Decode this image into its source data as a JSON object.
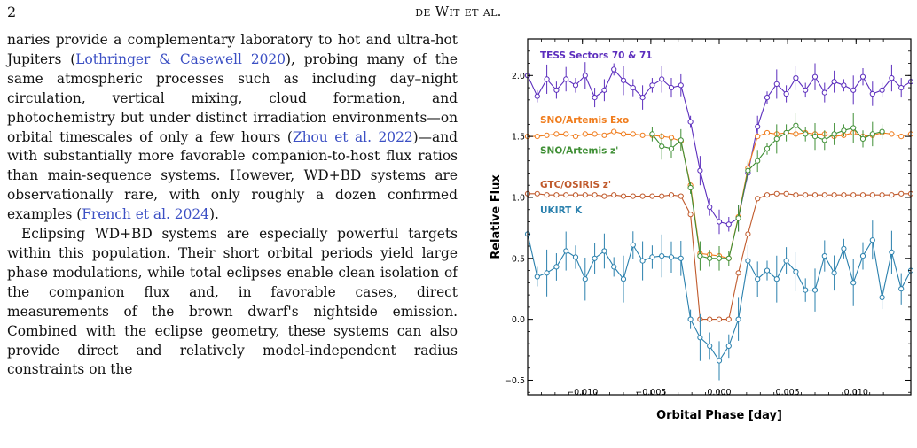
{
  "header": {
    "page_number": "2",
    "running_head": "de Wit et al."
  },
  "body": {
    "p1": [
      {
        "t": "naries provide a complementary laboratory to hot and ultra-hot Jupiters ("
      },
      {
        "t": "Lothringer & Casewell 2020",
        "cite": true
      },
      {
        "t": "), probing many of the same atmospheric processes such as including day–night circulation, vertical mixing, cloud formation, and photochemistry but under distinct irradiation environments—on orbital timescales of only a few hours ("
      },
      {
        "t": "Zhou et al. 2022",
        "cite": true
      },
      {
        "t": ")—and with substantially more favorable companion-to-host flux ratios than main-sequence systems. However, WD+BD systems are observationally rare, with only roughly a dozen confirmed examples ("
      },
      {
        "t": "French et al. 2024",
        "cite": true
      },
      {
        "t": ")."
      }
    ],
    "p2": [
      {
        "t": "Eclipsing WD+BD systems are especially powerful targets within this population. Their short orbital periods yield large phase modulations, while total eclipses enable clean isolation of the companion flux and, in favorable cases, direct measurements of the brown dwarf's nightside emission. Combined with the eclipse geometry, these systems can also provide direct and relatively model-independent radius constraints on the"
      }
    ]
  },
  "chart_data": {
    "type": "line",
    "xlabel": "Orbital Phase [day]",
    "ylabel": "Relative Flux",
    "xlim": [
      -0.014,
      0.014
    ],
    "ylim": [
      -0.62,
      2.3
    ],
    "xticks": [
      -0.01,
      -0.005,
      0.0,
      0.005,
      0.01
    ],
    "xtick_labels": [
      "−0.010",
      "−0.005",
      "0.000",
      "0.005",
      "0.010"
    ],
    "yticks": [
      -0.5,
      0.0,
      0.5,
      1.0,
      1.5,
      2.0
    ],
    "ytick_labels": [
      "−0.5",
      "0.0",
      "0.5",
      "1.0",
      "1.5",
      "2.0"
    ],
    "grid": false,
    "x": [
      -0.014,
      -0.0133,
      -0.0126,
      -0.0119,
      -0.0112,
      -0.0105,
      -0.0098,
      -0.0091,
      -0.0084,
      -0.0077,
      -0.007,
      -0.0063,
      -0.0056,
      -0.0049,
      -0.0042,
      -0.0035,
      -0.0028,
      -0.0021,
      -0.0014,
      -0.0007,
      0.0,
      0.0007,
      0.0014,
      0.0021,
      0.0028,
      0.0035,
      0.0042,
      0.0049,
      0.0056,
      0.0063,
      0.007,
      0.0077,
      0.0084,
      0.0091,
      0.0098,
      0.0105,
      0.0112,
      0.0119,
      0.0126,
      0.0133,
      0.014
    ],
    "series": [
      {
        "name": "TESS Sectors 70 & 71",
        "color": "#5b2dbd",
        "label_y": 2.14,
        "errors": true,
        "values": [
          2.0,
          1.83,
          1.97,
          1.88,
          1.97,
          1.92,
          2.0,
          1.82,
          1.88,
          2.05,
          1.96,
          1.9,
          1.82,
          1.92,
          1.97,
          1.9,
          1.92,
          1.62,
          1.22,
          0.92,
          0.8,
          0.78,
          0.83,
          1.2,
          1.58,
          1.82,
          1.93,
          1.85,
          1.98,
          1.88,
          1.99,
          1.86,
          1.95,
          1.92,
          1.88,
          1.99,
          1.85,
          1.88,
          1.98,
          1.9,
          1.95
        ]
      },
      {
        "name": "SNO/Artemis Exo",
        "color": "#f07d1e",
        "label_y": 1.61,
        "errors": false,
        "values": [
          1.5,
          1.5,
          1.51,
          1.52,
          1.52,
          1.5,
          1.52,
          1.52,
          1.51,
          1.54,
          1.52,
          1.52,
          1.51,
          1.51,
          1.5,
          1.49,
          1.46,
          1.1,
          0.54,
          0.53,
          0.52,
          0.5,
          0.84,
          1.24,
          1.5,
          1.53,
          1.52,
          1.53,
          1.52,
          1.53,
          1.52,
          1.52,
          1.5,
          1.51,
          1.53,
          1.5,
          1.51,
          1.53,
          1.52,
          1.5,
          1.52
        ]
      },
      {
        "name": "SNO/Artemis z'",
        "color": "#3f8f35",
        "label_y": 1.36,
        "errors": true,
        "values": [
          null,
          null,
          null,
          null,
          null,
          null,
          null,
          null,
          null,
          null,
          null,
          null,
          null,
          1.52,
          1.42,
          1.4,
          1.47,
          1.08,
          0.52,
          0.5,
          0.5,
          0.5,
          0.83,
          1.22,
          1.3,
          1.4,
          1.48,
          1.53,
          1.59,
          1.52,
          1.5,
          1.47,
          1.52,
          1.55,
          1.57,
          1.48,
          1.52,
          1.54,
          null,
          null,
          null
        ]
      },
      {
        "name": "GTC/OSIRIS z'",
        "color": "#c05a2c",
        "label_y": 1.08,
        "errors": false,
        "values": [
          1.03,
          1.03,
          1.02,
          1.02,
          1.02,
          1.02,
          1.02,
          1.02,
          1.01,
          1.02,
          1.01,
          1.01,
          1.01,
          1.01,
          1.01,
          1.02,
          1.01,
          0.86,
          0.0,
          0.0,
          0.0,
          0.0,
          0.38,
          0.7,
          0.99,
          1.02,
          1.03,
          1.03,
          1.02,
          1.02,
          1.02,
          1.02,
          1.02,
          1.02,
          1.02,
          1.02,
          1.02,
          1.02,
          1.02,
          1.03,
          1.03
        ]
      },
      {
        "name": "UKIRT K",
        "color": "#2a80ad",
        "label_y": 0.87,
        "errors": true,
        "values": [
          0.7,
          0.35,
          0.38,
          0.43,
          0.56,
          0.51,
          0.33,
          0.5,
          0.56,
          0.43,
          0.33,
          0.61,
          0.48,
          0.51,
          0.52,
          0.51,
          0.5,
          0.0,
          -0.15,
          -0.22,
          -0.34,
          -0.22,
          0.0,
          0.48,
          0.33,
          0.4,
          0.33,
          0.48,
          0.39,
          0.24,
          0.24,
          0.52,
          0.38,
          0.58,
          0.3,
          0.52,
          0.65,
          0.18,
          0.55,
          0.25,
          0.4
        ]
      }
    ]
  }
}
